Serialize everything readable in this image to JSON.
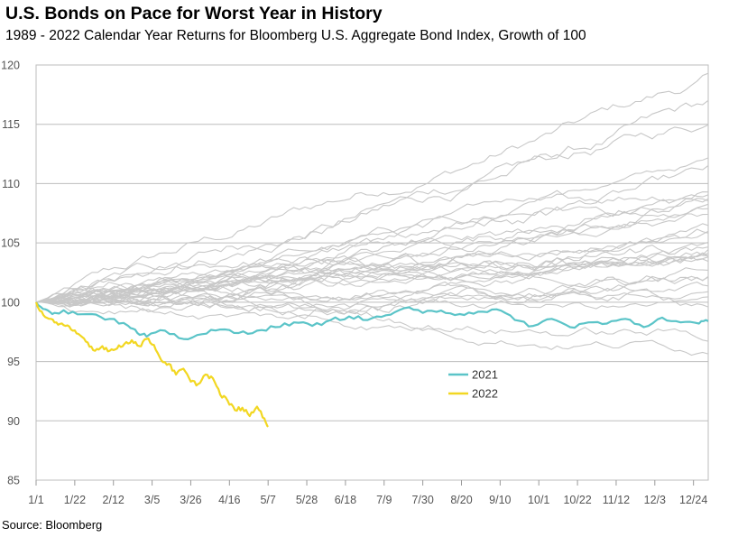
{
  "header": {
    "title": "U.S. Bonds on Pace for Worst Year in History",
    "subtitle": "1989 - 2022 Calendar Year Returns for Bloomberg U.S. Aggregate Bond Index, Growth of 100"
  },
  "footer": {
    "source": "Source: Bloomberg"
  },
  "chart_data": {
    "type": "line",
    "title": "U.S. Bonds on Pace for Worst Year in History",
    "subtitle": "1989 - 2022 Calendar Year Returns for Bloomberg U.S. Aggregate Bond Index, Growth of 100",
    "xlabel": "",
    "ylabel": "",
    "x_ticks": [
      "1/1",
      "1/22",
      "2/12",
      "3/5",
      "3/26",
      "4/16",
      "5/7",
      "5/28",
      "6/18",
      "7/9",
      "7/30",
      "8/20",
      "9/10",
      "10/1",
      "10/22",
      "11/12",
      "12/3",
      "12/24"
    ],
    "x_range_days": [
      0,
      365
    ],
    "ylim": [
      85,
      120
    ],
    "y_ticks": [
      85,
      90,
      95,
      100,
      105,
      110,
      115,
      120
    ],
    "grid": "horizontal",
    "legend": "center-right",
    "highlight_series": [
      {
        "name": "2021",
        "color": "#5bc4c8",
        "x_days": [
          0,
          5,
          10,
          20,
          30,
          40,
          50,
          55,
          60,
          70,
          80,
          90,
          100,
          110,
          120,
          130,
          140,
          150,
          160,
          170,
          180,
          190,
          200,
          210,
          220,
          230,
          240,
          250,
          260,
          270,
          280,
          290,
          300,
          310,
          320,
          330,
          340,
          350,
          360,
          365
        ],
        "values": [
          100.0,
          99.4,
          99.1,
          99.2,
          99.0,
          98.6,
          98.0,
          97.4,
          97.1,
          97.6,
          96.9,
          97.3,
          97.7,
          97.4,
          97.6,
          97.9,
          98.3,
          98.0,
          98.5,
          98.8,
          98.5,
          98.9,
          99.5,
          99.1,
          99.3,
          99.0,
          99.2,
          99.4,
          98.5,
          98.0,
          98.6,
          97.9,
          98.3,
          98.2,
          98.6,
          97.9,
          98.7,
          98.3,
          98.2,
          98.4
        ]
      },
      {
        "name": "2022",
        "color": "#f2d722",
        "x_days": [
          0,
          4,
          8,
          12,
          16,
          20,
          24,
          28,
          32,
          36,
          40,
          44,
          48,
          52,
          56,
          60,
          64,
          68,
          72,
          76,
          80,
          84,
          88,
          92,
          96,
          100,
          104,
          108,
          112,
          116,
          120,
          124,
          126
        ],
        "values": [
          100.0,
          98.9,
          98.6,
          98.1,
          98.0,
          97.6,
          97.2,
          96.6,
          95.9,
          96.3,
          95.9,
          96.1,
          96.5,
          96.8,
          96.3,
          96.9,
          96.4,
          95.1,
          94.8,
          93.9,
          94.4,
          93.3,
          93.1,
          93.9,
          93.6,
          92.2,
          91.7,
          90.9,
          91.1,
          90.4,
          91.2,
          90.2,
          89.5
        ]
      }
    ],
    "background_series": {
      "count": 32,
      "color": "#c8c8c8",
      "description": "Other calendar years 1989-2020, end values",
      "end_values": [
        118.5,
        116.0,
        114.8,
        111.8,
        110.3,
        109.8,
        109.2,
        108.7,
        108.3,
        107.9,
        107.5,
        107.0,
        106.5,
        106.0,
        105.5,
        105.0,
        104.6,
        104.2,
        103.9,
        103.6,
        103.2,
        102.9,
        102.6,
        102.2,
        101.9,
        101.5,
        101.2,
        100.8,
        100.2,
        99.5,
        97.3,
        96.5
      ]
    }
  }
}
